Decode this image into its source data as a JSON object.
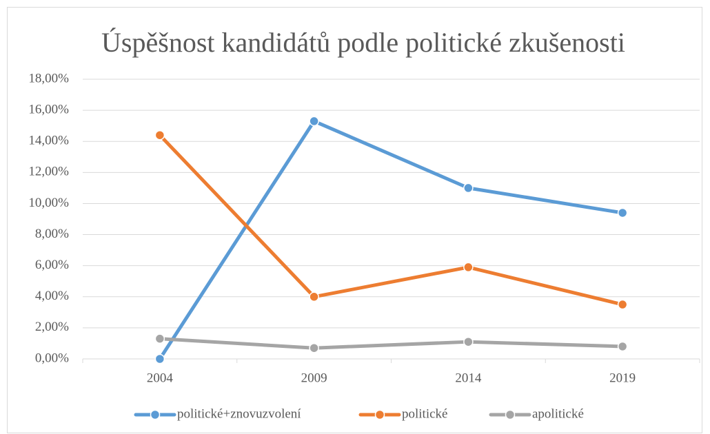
{
  "chart_data": {
    "type": "line",
    "title": "Úspěšnost kandidátů podle politické zkušenosti",
    "categories": [
      "2004",
      "2009",
      "2014",
      "2019"
    ],
    "series": [
      {
        "name": "politické+znovuzvolení",
        "color": "#5b9bd5",
        "values": [
          0,
          15.3,
          11.0,
          9.4
        ]
      },
      {
        "name": "politické",
        "color": "#ed7d31",
        "values": [
          14.4,
          4.0,
          5.9,
          3.5
        ]
      },
      {
        "name": "apolitické",
        "color": "#a5a5a5",
        "values": [
          1.3,
          0.7,
          1.1,
          0.8
        ]
      }
    ],
    "ylim": [
      0,
      18
    ],
    "yticks": [
      {
        "value": 0,
        "label": "0,00%"
      },
      {
        "value": 2,
        "label": "2,00%"
      },
      {
        "value": 4,
        "label": "4,00%"
      },
      {
        "value": 6,
        "label": "6,00%"
      },
      {
        "value": 8,
        "label": "8,00%"
      },
      {
        "value": 10,
        "label": "10,00%"
      },
      {
        "value": 12,
        "label": "12,00%"
      },
      {
        "value": 14,
        "label": "14,00%"
      },
      {
        "value": 16,
        "label": "16,00%"
      },
      {
        "value": 18,
        "label": "18,00%"
      }
    ],
    "grid": true,
    "legend": "bottom"
  }
}
